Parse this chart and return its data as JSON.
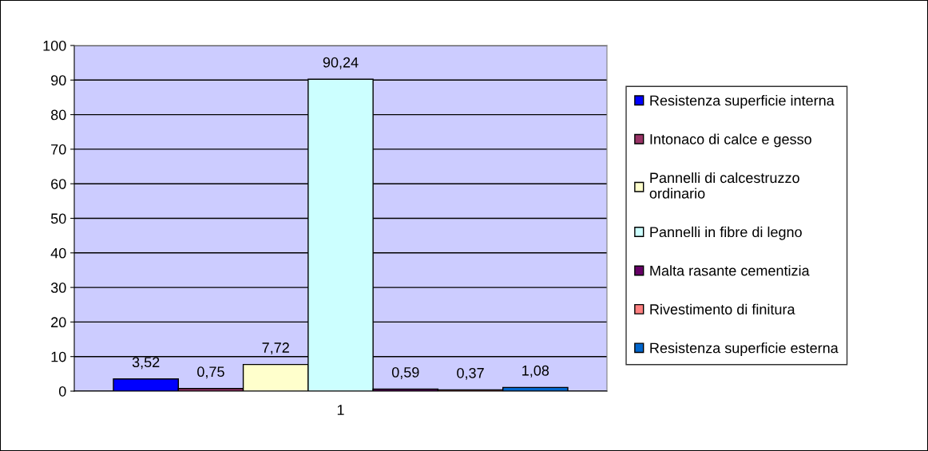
{
  "chart_data": {
    "type": "bar",
    "categories": [
      "1"
    ],
    "ylim": [
      0,
      100
    ],
    "yticks": [
      0,
      10,
      20,
      30,
      40,
      50,
      60,
      70,
      80,
      90,
      100
    ],
    "grid": "y",
    "legend": "right",
    "series": [
      {
        "name": "Resistenza superficie interna",
        "color": "#0000ff",
        "values": [
          3.52
        ],
        "value_labels": [
          "3,52"
        ]
      },
      {
        "name": "Intonaco di calce e gesso",
        "color": "#993366",
        "values": [
          0.75
        ],
        "value_labels": [
          "0,75"
        ]
      },
      {
        "name": "Pannelli di calcestruzzo\nordinario",
        "color": "#ffffcc",
        "values": [
          7.72
        ],
        "value_labels": [
          "7,72"
        ]
      },
      {
        "name": "Pannelli in fibre di legno",
        "color": "#ccffff",
        "values": [
          90.24
        ],
        "value_labels": [
          "90,24"
        ]
      },
      {
        "name": "Malta rasante cementizia",
        "color": "#660066",
        "values": [
          0.59
        ],
        "value_labels": [
          "0,59"
        ]
      },
      {
        "name": "Rivestimento di finitura",
        "color": "#ff8080",
        "values": [
          0.37
        ],
        "value_labels": [
          "0,37"
        ]
      },
      {
        "name": "Resistenza superficie esterna",
        "color": "#0066cc",
        "values": [
          1.08
        ],
        "value_labels": [
          "1,08"
        ]
      }
    ]
  }
}
